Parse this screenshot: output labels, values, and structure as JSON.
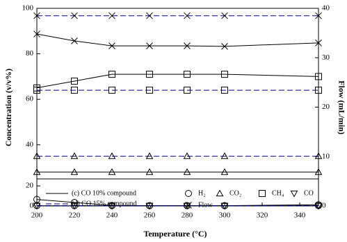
{
  "chart_data": {
    "type": "line",
    "x_label": "Temperature (°C)",
    "y_label": "Concentration (v/v%)",
    "y2_label": "Flow (mL/min)",
    "x": [
      200,
      220,
      240,
      260,
      280,
      300,
      350
    ],
    "xlim": [
      200,
      350
    ],
    "xticks": [
      200,
      220,
      240,
      260,
      280,
      300,
      320,
      340
    ],
    "ylim_upper": [
      25,
      100
    ],
    "yticks_upper": [
      40,
      60,
      80,
      100
    ],
    "ylim_lower": [
      0,
      27
    ],
    "yticks_lower": [
      0,
      20
    ],
    "y2lim": [
      0,
      40
    ],
    "y2ticks": [
      0,
      10,
      20,
      30,
      40
    ],
    "line_styles": [
      {
        "label": "(c) CO 10% compound",
        "color": "#000000",
        "dash": "none"
      },
      {
        "label": "(d) CO 15% compound",
        "color": "#000080",
        "dash": "8 4"
      }
    ],
    "markers": [
      {
        "label": "H₂",
        "marker": "circle"
      },
      {
        "label": "CO₂",
        "marker": "triangle"
      },
      {
        "label": "CH₄",
        "marker": "square"
      },
      {
        "label": "CO",
        "marker": "triangle-down"
      },
      {
        "label": "Flow",
        "marker": "x"
      }
    ],
    "series": [
      {
        "compound": 0,
        "species": 4,
        "axis": "y2",
        "values": [
          34.8,
          33.4,
          32.4,
          32.4,
          32.4,
          32.3,
          33.0
        ]
      },
      {
        "compound": 1,
        "species": 4,
        "axis": "y2",
        "values": [
          38.5,
          38.5,
          38.5,
          38.5,
          38.5,
          38.5,
          38.5
        ]
      },
      {
        "compound": 0,
        "species": 2,
        "axis": "y",
        "values": [
          65,
          68,
          71,
          71,
          71,
          71,
          70
        ]
      },
      {
        "compound": 1,
        "species": 2,
        "axis": "y",
        "values": [
          64,
          64,
          64,
          64,
          64,
          64,
          64
        ]
      },
      {
        "compound": 1,
        "species": 1,
        "axis": "y",
        "values": [
          35,
          35,
          35,
          35,
          35,
          35,
          35
        ]
      },
      {
        "compound": 0,
        "species": 1,
        "axis": "y",
        "values": [
          28,
          28,
          28,
          28,
          28,
          28,
          28
        ]
      },
      {
        "compound": 0,
        "species": 0,
        "axis": "y",
        "values": [
          6.5,
          3.5,
          0.5,
          0.3,
          0.3,
          0.3,
          1.2
        ]
      },
      {
        "compound": 1,
        "species": 0,
        "axis": "y",
        "values": [
          0.3,
          0.3,
          0.3,
          0.3,
          0.3,
          0.3,
          0.3
        ]
      },
      {
        "compound": 0,
        "species": 3,
        "axis": "y",
        "values": [
          0.2,
          0.2,
          0.2,
          0.2,
          0.2,
          0.2,
          0.2
        ]
      },
      {
        "compound": 1,
        "species": 3,
        "axis": "y",
        "values": [
          0.1,
          0.1,
          0.1,
          0.1,
          0.1,
          0.1,
          0.1
        ]
      }
    ]
  }
}
